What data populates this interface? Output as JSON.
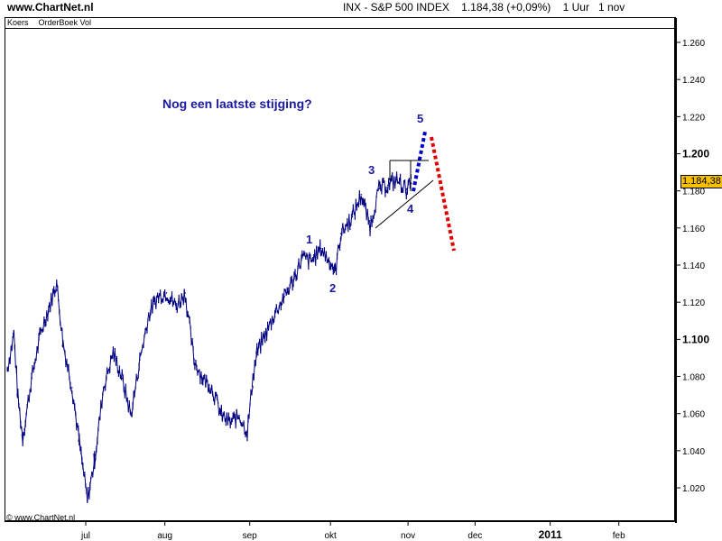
{
  "header": {
    "site": "www.ChartNet.nl",
    "title": "INX - S&P 500 INDEX",
    "price": "1.184,38 (+0,09%)",
    "interval": "1 Uur",
    "date": "1 nov"
  },
  "tabs": [
    "Koers",
    "OrderBoek Vol"
  ],
  "copyright": "© www.ChartNet.nl",
  "current_price_label": "1.184,38",
  "colors": {
    "series": "#000080",
    "annotation_text": "#1a1aa0",
    "forecast_up": "#0000cc",
    "forecast_down": "#e00000",
    "price_box": "#f7c000"
  },
  "chart_data": {
    "type": "line",
    "title": "INX - S&P 500 INDEX",
    "xlabel": "",
    "ylabel": "",
    "x_unit": "month (fractional, 2010)",
    "xlim": [
      6.0,
      13.3
    ],
    "ylim": [
      1.0,
      1.273
    ],
    "y_ticks": [
      "1.020",
      "1.040",
      "1.060",
      "1.080",
      "1.100",
      "1.120",
      "1.140",
      "1.160",
      "1.180",
      "1.200",
      "1.220",
      "1.240",
      "1.260"
    ],
    "y_bold_ticks": [
      "1.100",
      "1.200"
    ],
    "x_tick_labels": [
      {
        "label": "jul",
        "x": 7.0
      },
      {
        "label": "aug",
        "x": 7.98
      },
      {
        "label": "sep",
        "x": 9.03
      },
      {
        "label": "okt",
        "x": 10.03
      },
      {
        "label": "nov",
        "x": 10.99
      },
      {
        "label": "dec",
        "x": 11.82
      },
      {
        "label": "2011",
        "x": 12.75
      },
      {
        "label": "feb",
        "x": 13.6
      }
    ],
    "x": [
      6.03,
      6.11,
      6.16,
      6.22,
      6.33,
      6.44,
      6.55,
      6.64,
      6.72,
      6.83,
      6.92,
      7.02,
      7.11,
      7.22,
      7.34,
      7.45,
      7.56,
      7.67,
      7.78,
      7.89,
      8.0,
      8.12,
      8.23,
      8.34,
      8.45,
      8.56,
      8.68,
      8.79,
      8.9,
      9.0,
      9.07,
      9.12,
      9.23,
      9.35,
      9.46,
      9.57,
      9.68,
      9.79,
      9.91,
      10.02,
      10.09,
      10.16,
      10.3,
      10.41,
      10.52,
      10.63,
      10.74,
      10.85,
      10.97,
      11.03
    ],
    "values": [
      1.084,
      1.103,
      1.069,
      1.047,
      1.079,
      1.103,
      1.118,
      1.13,
      1.098,
      1.074,
      1.045,
      1.013,
      1.035,
      1.074,
      1.093,
      1.079,
      1.059,
      1.089,
      1.113,
      1.123,
      1.125,
      1.118,
      1.125,
      1.089,
      1.079,
      1.074,
      1.059,
      1.055,
      1.059,
      1.05,
      1.079,
      1.093,
      1.103,
      1.115,
      1.123,
      1.132,
      1.144,
      1.142,
      1.149,
      1.142,
      1.137,
      1.157,
      1.166,
      1.178,
      1.161,
      1.181,
      1.183,
      1.186,
      1.181,
      1.184
    ],
    "annotations": {
      "headline": "Nog een laatste stijging?",
      "wave_labels": [
        "1",
        "2",
        "3",
        "4",
        "5"
      ]
    }
  }
}
